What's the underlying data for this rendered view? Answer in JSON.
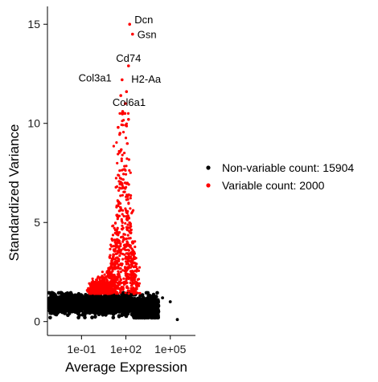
{
  "chart_data": {
    "type": "scatter",
    "xlabel": "Average Expression",
    "ylabel": "Standardized Variance",
    "x_scale": "log10",
    "xlim": [
      0.0005,
      5000000
    ],
    "ylim": [
      -0.7,
      15.9
    ],
    "x_ticks": [
      {
        "value": 0.1,
        "label": "1e-01"
      },
      {
        "value": 100,
        "label": "1e+02"
      },
      {
        "value": 100000,
        "label": "1e+05"
      }
    ],
    "y_ticks": [
      {
        "value": 0,
        "label": "0"
      },
      {
        "value": 5,
        "label": "5"
      },
      {
        "value": 10,
        "label": "10"
      },
      {
        "value": 15,
        "label": "15"
      }
    ],
    "grid": false,
    "legend_position": "right",
    "series": [
      {
        "name": "Non-variable count: 15904",
        "color": "#000000",
        "points": [
          {
            "x": 100000,
            "y": 1.0
          },
          {
            "x": 300000,
            "y": 0.1
          },
          {
            "x": 5000,
            "y": 0.6
          },
          {
            "x": 15000,
            "y": 1.1
          },
          {
            "x": 30000,
            "y": 1.2
          },
          {
            "x": 8000,
            "y": 1.3
          },
          {
            "x": 3000,
            "y": 0.9
          }
        ]
      },
      {
        "name": "Variable count: 2000",
        "color": "#ff0000",
        "points": [
          {
            "x": 180,
            "y": 15.0
          },
          {
            "x": 280,
            "y": 14.5
          },
          {
            "x": 150,
            "y": 12.9
          },
          {
            "x": 55,
            "y": 12.2
          },
          {
            "x": 110,
            "y": 11.6
          },
          {
            "x": 45,
            "y": 11.4
          },
          {
            "x": 90,
            "y": 11.0
          },
          {
            "x": 60,
            "y": 10.6
          },
          {
            "x": 150,
            "y": 10.2
          },
          {
            "x": 30,
            "y": 9.8
          },
          {
            "x": 40,
            "y": 9.5
          }
        ]
      }
    ],
    "annotations": [
      {
        "label": "Dcn",
        "x": 180,
        "y": 15.0
      },
      {
        "label": "Gsn",
        "x": 280,
        "y": 14.5
      },
      {
        "label": "Cd74",
        "x": 150,
        "y": 12.9
      },
      {
        "label": "Col3a1",
        "x": 55,
        "y": 12.2
      },
      {
        "label": "H2-Aa",
        "x": 110,
        "y": 11.6
      },
      {
        "label": "Col6a1",
        "x": 60,
        "y": 10.6
      }
    ]
  }
}
